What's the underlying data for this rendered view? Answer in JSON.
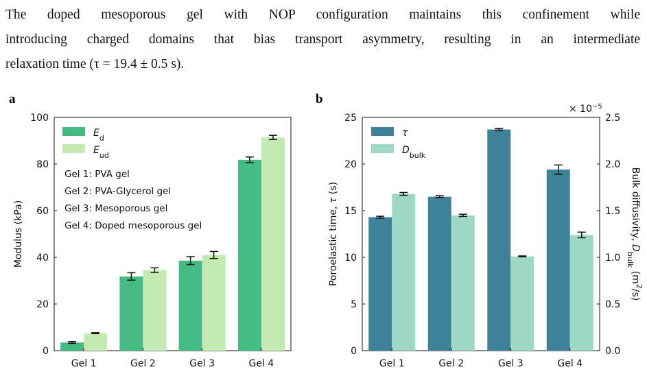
{
  "paragraph": {
    "line1": "The doped mesoporous gel with NOP configuration maintains this confinement while",
    "line2": "introducing charged domains that bias transport asymmetry, resulting in an intermediate",
    "line3": "relaxation time (τ =  19.4  ± 0.5 s)."
  },
  "panel_a_label": "a",
  "panel_b_label": "b",
  "chart_data": [
    {
      "type": "bar",
      "panel": "a",
      "categories": [
        "Gel 1",
        "Gel 2",
        "Gel 3",
        "Gel 4"
      ],
      "series": [
        {
          "name": "E_d",
          "values": [
            3.5,
            31.8,
            38.6,
            81.8
          ],
          "errors": [
            0.4,
            1.6,
            1.7,
            1.2
          ],
          "color": "#45bb84"
        },
        {
          "name": "E_ud",
          "values": [
            7.5,
            34.5,
            41.0,
            91.4
          ],
          "errors": [
            0.2,
            1.0,
            1.5,
            0.9
          ],
          "color": "#c3eab0"
        }
      ],
      "legend_labels": {
        "main": [
          "E",
          "E"
        ],
        "sub": [
          "d",
          "ud"
        ]
      },
      "ylabel": "Modulus (kPa)",
      "ylim": [
        0,
        100
      ],
      "yticks": [
        0,
        20,
        40,
        60,
        80,
        100
      ],
      "annotations": [
        "Gel 1: PVA gel",
        "Gel 2: PVA-Glycerol gel",
        "Gel 3: Mesoporous gel",
        "Gel 4: Doped mesoporous gel"
      ],
      "legend_position": "top-left"
    },
    {
      "type": "bar",
      "panel": "b",
      "categories": [
        "Gel 1",
        "Gel 2",
        "Gel 3",
        "Gel 4"
      ],
      "series": [
        {
          "name": "τ",
          "axis": "left",
          "values": [
            14.3,
            16.5,
            23.7,
            19.4
          ],
          "errors": [
            0.1,
            0.1,
            0.1,
            0.5
          ],
          "color": "#3e8299"
        },
        {
          "name": "D_bulk",
          "axis": "right",
          "values": [
            1.68,
            1.45,
            1.01,
            1.24
          ],
          "errors": [
            0.015,
            0.012,
            0.005,
            0.03
          ],
          "color": "#9ed9c6"
        }
      ],
      "legend_labels": {
        "main": [
          "τ",
          "D"
        ],
        "sub": [
          "",
          "bulk"
        ]
      },
      "ylabel_left": {
        "text": "Poroelastic time, ",
        "sym": "τ",
        "unit": " (s)"
      },
      "ylabel_right": {
        "text": "Bulk diffusivity, ",
        "sym": "D",
        "sub": "bulk",
        "unit": " (m",
        "sup": "2",
        "unit_end": "/s)"
      },
      "ylim_left": [
        0,
        25
      ],
      "yticks_left": [
        0,
        5,
        10,
        15,
        20,
        25
      ],
      "ylim_right": [
        0,
        2.5
      ],
      "yticks_right": [
        "0.0",
        "0.5",
        "1.0",
        "1.5",
        "2.0",
        "2.5"
      ],
      "right_axis_multiplier": {
        "base": "× 10",
        "exp": "−5"
      },
      "legend_position": "top-left"
    }
  ]
}
